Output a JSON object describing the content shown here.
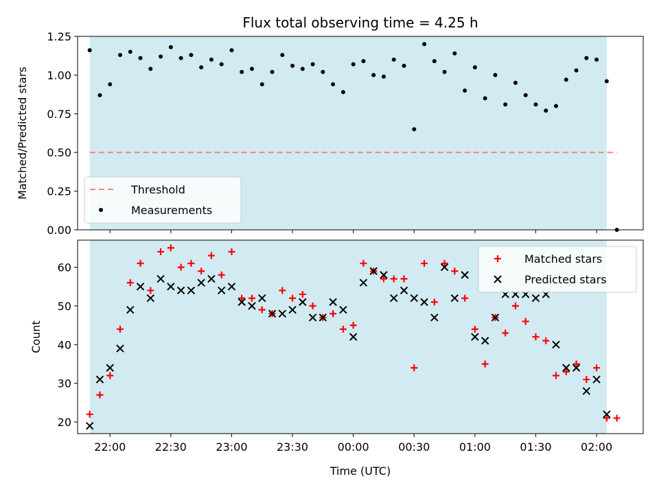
{
  "figure": {
    "title": "Flux total observing time = 4.25 h",
    "xlabel": "Time (UTC)",
    "xtick_labels": [
      "22:00",
      "22:30",
      "23:00",
      "23:30",
      "00:00",
      "00:30",
      "01:00",
      "01:30",
      "02:00"
    ]
  },
  "colors": {
    "shade": "#add8e6",
    "threshold": "#ff7f7f",
    "measurement": "#000000",
    "matched": "#ff0000",
    "predicted": "#000000"
  },
  "chart_data": [
    {
      "type": "scatter",
      "panel": "top",
      "ylabel": "Matched/Predicted stars",
      "xlim": [
        "21:44",
        "02:23"
      ],
      "ylim": [
        0,
        1.25
      ],
      "yticks": [
        0.0,
        0.25,
        0.5,
        0.75,
        1.0,
        1.25
      ],
      "ytick_labels": [
        "0.00",
        "0.25",
        "0.50",
        "0.75",
        "1.00",
        "1.25"
      ],
      "shaded_interval": [
        "21:50",
        "02:05"
      ],
      "legend_position": "lower-left",
      "series": [
        {
          "name": "Threshold",
          "kind": "dashed-line",
          "x": [
            "21:50",
            "02:10"
          ],
          "y": [
            0.5,
            0.5
          ]
        },
        {
          "name": "Measurements",
          "kind": "dot",
          "x": [
            "21:50",
            "21:55",
            "22:00",
            "22:05",
            "22:10",
            "22:15",
            "22:20",
            "22:25",
            "22:30",
            "22:35",
            "22:40",
            "22:45",
            "22:50",
            "22:55",
            "23:00",
            "23:05",
            "23:10",
            "23:15",
            "23:20",
            "23:25",
            "23:30",
            "23:35",
            "23:40",
            "23:45",
            "23:50",
            "23:55",
            "00:00",
            "00:05",
            "00:10",
            "00:15",
            "00:20",
            "00:25",
            "00:30",
            "00:35",
            "00:40",
            "00:45",
            "00:50",
            "00:55",
            "01:00",
            "01:05",
            "01:10",
            "01:15",
            "01:20",
            "01:25",
            "01:30",
            "01:35",
            "01:40",
            "01:45",
            "01:50",
            "01:55",
            "02:00",
            "02:05",
            "02:10"
          ],
          "y": [
            1.16,
            0.87,
            0.94,
            1.13,
            1.15,
            1.11,
            1.04,
            1.12,
            1.18,
            1.11,
            1.13,
            1.05,
            1.1,
            1.07,
            1.16,
            1.02,
            1.04,
            0.94,
            1.02,
            1.13,
            1.06,
            1.04,
            1.07,
            1.02,
            0.94,
            0.89,
            1.07,
            1.09,
            1.0,
            0.99,
            1.1,
            1.06,
            0.65,
            1.2,
            1.09,
            1.02,
            1.14,
            0.9,
            1.05,
            0.85,
            1.0,
            0.81,
            0.95,
            0.87,
            0.81,
            0.77,
            0.8,
            0.97,
            1.03,
            1.11,
            1.1,
            0.96,
            0.0
          ]
        }
      ]
    },
    {
      "type": "scatter",
      "panel": "bottom",
      "ylabel": "Count",
      "xlim": [
        "21:44",
        "02:23"
      ],
      "ylim": [
        17,
        67
      ],
      "yticks": [
        20,
        30,
        40,
        50,
        60
      ],
      "ytick_labels": [
        "20",
        "30",
        "40",
        "50",
        "60"
      ],
      "shaded_interval": [
        "21:50",
        "02:05"
      ],
      "legend_position": "upper-right",
      "series": [
        {
          "name": "Matched stars",
          "marker": "plus",
          "x": [
            "21:50",
            "21:55",
            "22:00",
            "22:05",
            "22:10",
            "22:15",
            "22:20",
            "22:25",
            "22:30",
            "22:35",
            "22:40",
            "22:45",
            "22:50",
            "22:55",
            "23:00",
            "23:05",
            "23:10",
            "23:15",
            "23:20",
            "23:25",
            "23:30",
            "23:35",
            "23:40",
            "23:45",
            "23:50",
            "23:55",
            "00:00",
            "00:05",
            "00:10",
            "00:15",
            "00:20",
            "00:25",
            "00:30",
            "00:35",
            "00:40",
            "00:45",
            "00:50",
            "00:55",
            "01:00",
            "01:05",
            "01:10",
            "01:15",
            "01:20",
            "01:25",
            "01:30",
            "01:35",
            "01:40",
            "01:45",
            "01:50",
            "01:55",
            "02:00",
            "02:05",
            "02:10"
          ],
          "y": [
            22,
            27,
            32,
            44,
            56,
            61,
            54,
            64,
            65,
            60,
            61,
            59,
            63,
            58,
            64,
            52,
            52,
            49,
            48,
            54,
            52,
            53,
            50,
            47,
            48,
            44,
            45,
            61,
            59,
            57,
            57,
            57,
            34,
            61,
            51,
            61,
            59,
            52,
            44,
            35,
            47,
            43,
            50,
            46,
            42,
            41,
            32,
            33,
            35,
            31,
            34,
            21,
            21
          ]
        },
        {
          "name": "Predicted stars",
          "marker": "x",
          "x": [
            "21:50",
            "21:55",
            "22:00",
            "22:05",
            "22:10",
            "22:15",
            "22:20",
            "22:25",
            "22:30",
            "22:35",
            "22:40",
            "22:45",
            "22:50",
            "22:55",
            "23:00",
            "23:05",
            "23:10",
            "23:15",
            "23:20",
            "23:25",
            "23:30",
            "23:35",
            "23:40",
            "23:45",
            "23:50",
            "23:55",
            "00:00",
            "00:05",
            "00:10",
            "00:15",
            "00:20",
            "00:25",
            "00:30",
            "00:35",
            "00:40",
            "00:45",
            "00:50",
            "00:55",
            "01:00",
            "01:05",
            "01:10",
            "01:15",
            "01:20",
            "01:25",
            "01:30",
            "01:35",
            "01:40",
            "01:45",
            "01:50",
            "01:55",
            "02:00",
            "02:05"
          ],
          "y": [
            19,
            31,
            34,
            39,
            49,
            55,
            52,
            57,
            55,
            54,
            54,
            56,
            57,
            54,
            55,
            51,
            50,
            52,
            48,
            48,
            49,
            51,
            47,
            47,
            51,
            49,
            42,
            56,
            59,
            58,
            52,
            54,
            52,
            51,
            47,
            60,
            52,
            58,
            42,
            41,
            47,
            53,
            53,
            53,
            52,
            53,
            40,
            34,
            34,
            28,
            31,
            22
          ]
        }
      ]
    }
  ]
}
